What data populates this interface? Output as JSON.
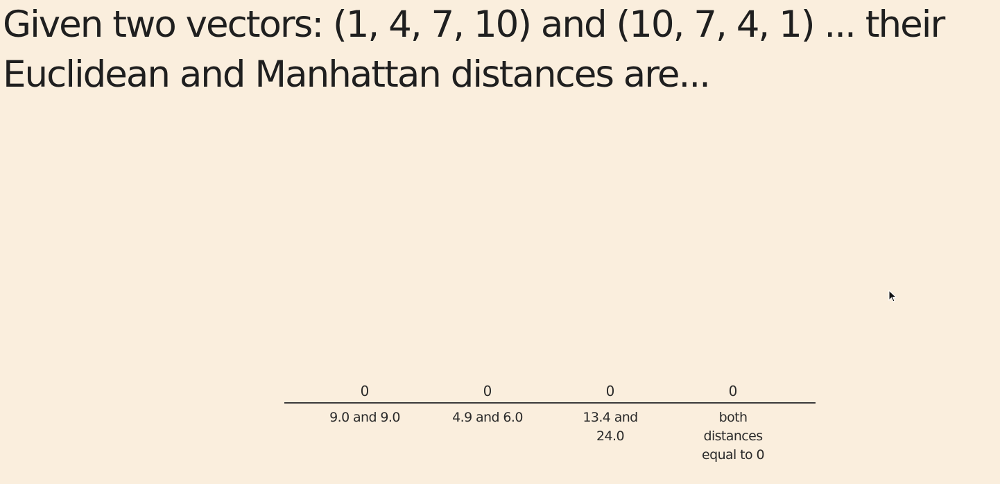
{
  "question": {
    "line1": "Given two vectors: (1, 4, 7, 10) and (10, 7, 4, 1) ... their",
    "line2": "Euclidean and Manhattan distances are..."
  },
  "chart_data": {
    "type": "bar",
    "categories": [
      "9.0 and 9.0",
      "4.9 and 6.0",
      "13.4 and 24.0",
      "both distances equal to 0"
    ],
    "category_lines": [
      [
        "9.0 and 9.0"
      ],
      [
        "4.9 and 6.0"
      ],
      [
        "13.4 and",
        "24.0"
      ],
      [
        "both",
        "distances",
        "equal to 0"
      ]
    ],
    "values": [
      0,
      0,
      0,
      0
    ],
    "value_labels": [
      "0",
      "0",
      "0",
      "0"
    ],
    "colors": {
      "baseline": "#3a3a3a",
      "text": "#2a2a2a",
      "background": "#faeedd"
    }
  }
}
